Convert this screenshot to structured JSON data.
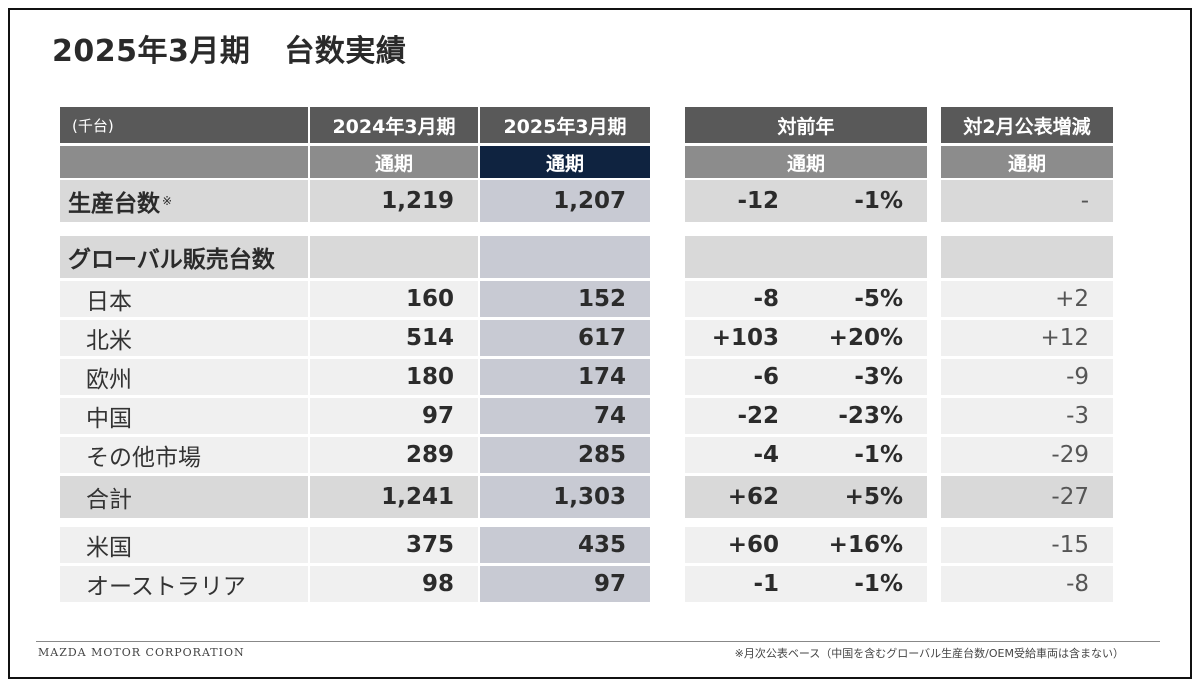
{
  "title": {
    "period": "2025年3月期",
    "main": "台数実績"
  },
  "header": {
    "unit": "(千台)",
    "fy2024": "2024年3月期",
    "fy2025": "2025年3月期",
    "yoy": "対前年",
    "vs_feb": "対2月公表増減",
    "sub_fy2024": "通期",
    "sub_fy2025": "通期",
    "sub_yoy": "通期",
    "sub_feb": "通期"
  },
  "production": {
    "label": "生産台数",
    "mark": "※",
    "fy2024": "1,219",
    "fy2025": "1,207",
    "diff": "-12",
    "pct": "-1%",
    "feb": "-"
  },
  "global_label": "グローバル販売台数",
  "rows": [
    {
      "label": "日本",
      "fy2024": "160",
      "fy2025": "152",
      "diff": "-8",
      "pct": "-5%",
      "feb": "+2"
    },
    {
      "label": "北米",
      "fy2024": "514",
      "fy2025": "617",
      "diff": "+103",
      "pct": "+20%",
      "feb": "+12"
    },
    {
      "label": "欧州",
      "fy2024": "180",
      "fy2025": "174",
      "diff": "-6",
      "pct": "-3%",
      "feb": "-9"
    },
    {
      "label": "中国",
      "fy2024": "97",
      "fy2025": "74",
      "diff": "-22",
      "pct": "-23%",
      "feb": "-3"
    },
    {
      "label": "その他市場",
      "fy2024": "289",
      "fy2025": "285",
      "diff": "-4",
      "pct": "-1%",
      "feb": "-29"
    }
  ],
  "total": {
    "label": "合計",
    "fy2024": "1,241",
    "fy2025": "1,303",
    "diff": "+62",
    "pct": "+5%",
    "feb": "-27"
  },
  "extra_rows": [
    {
      "label": "米国",
      "fy2024": "375",
      "fy2025": "435",
      "diff": "+60",
      "pct": "+16%",
      "feb": "-15"
    },
    {
      "label": "オーストラリア",
      "fy2024": "98",
      "fy2025": "97",
      "diff": "-1",
      "pct": "-1%",
      "feb": "-8"
    }
  ],
  "footer": {
    "company": "MAZDA MOTOR CORPORATION",
    "note": "※月次公表ベース（中国を含むグローバル生産台数/OEM受給車両は含まない）"
  }
}
